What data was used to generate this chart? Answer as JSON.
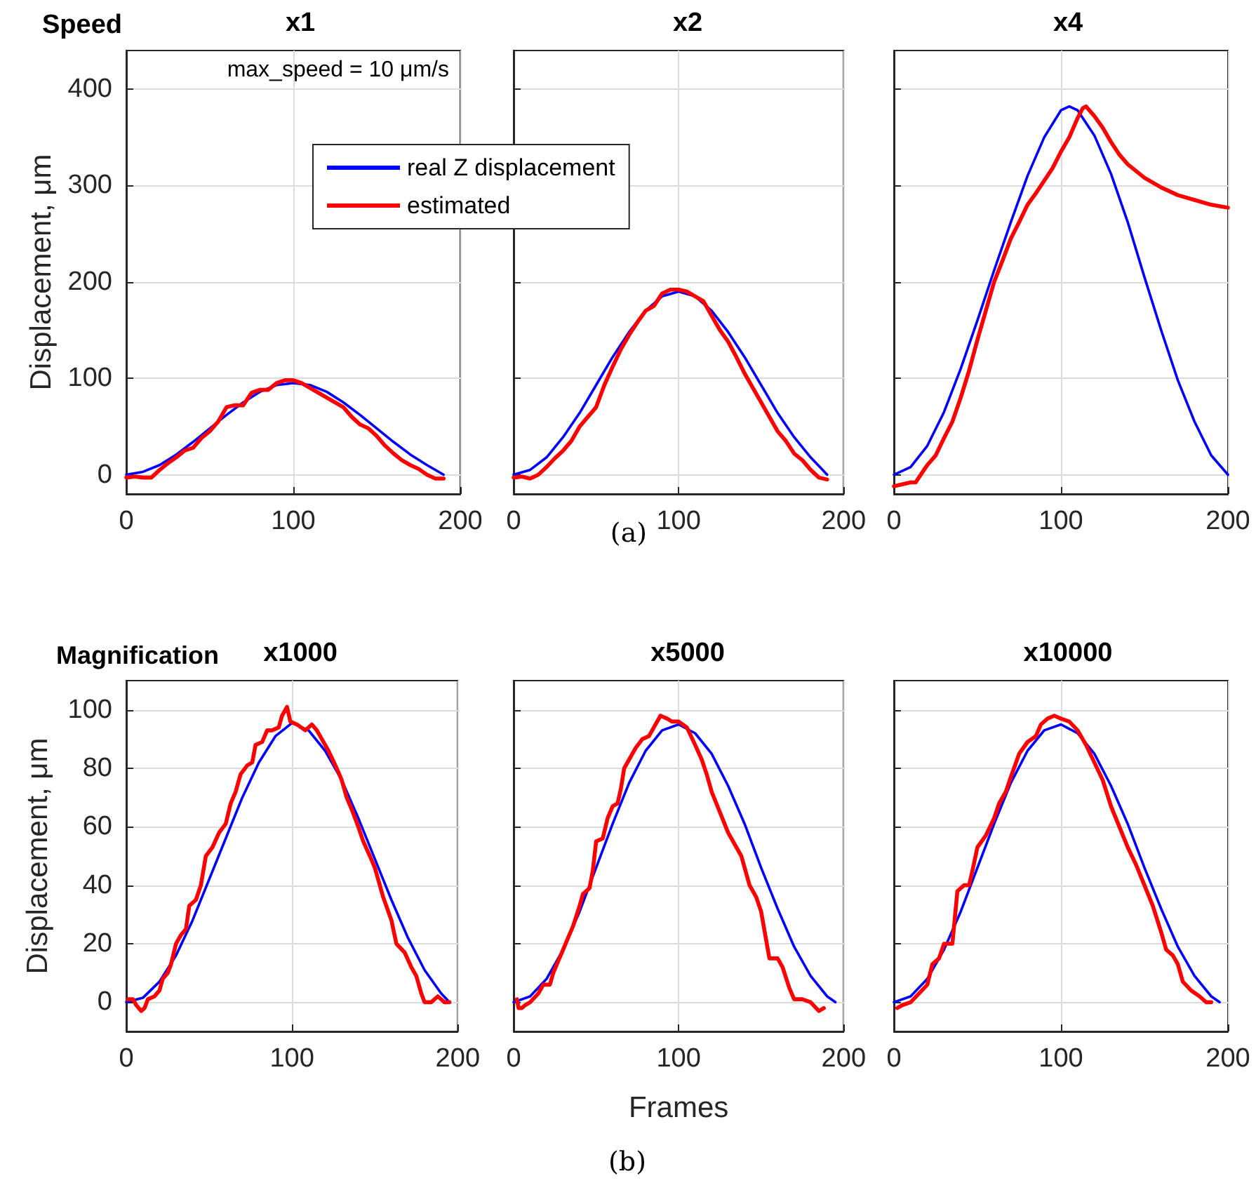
{
  "chart_data": [
    {
      "type": "line",
      "title": "x1",
      "ylabel": "Displacement, μm",
      "annotations": [
        "Speed",
        "max_speed = 10 μm/s"
      ],
      "legend": "top right",
      "grid": true,
      "xlim": [
        0,
        200
      ],
      "xticks": [
        0,
        100,
        200
      ],
      "ylim": [
        -20,
        440
      ],
      "yticks": [
        0,
        100,
        200,
        300,
        400
      ],
      "series": [
        {
          "name": "real Z displacement",
          "color": "#0000ff",
          "x": [
            0,
            10,
            20,
            30,
            40,
            50,
            60,
            70,
            80,
            90,
            100,
            110,
            120,
            130,
            140,
            150,
            160,
            170,
            180,
            190
          ],
          "values": [
            0,
            3,
            10,
            21,
            34,
            48,
            62,
            75,
            86,
            93,
            95,
            93,
            86,
            75,
            62,
            48,
            34,
            21,
            10,
            0
          ]
        },
        {
          "name": "estimated",
          "color": "#ff0000",
          "x": [
            0,
            5,
            10,
            15,
            20,
            25,
            30,
            35,
            40,
            45,
            50,
            55,
            60,
            65,
            70,
            75,
            80,
            85,
            90,
            95,
            100,
            105,
            110,
            115,
            120,
            125,
            130,
            135,
            140,
            145,
            150,
            155,
            160,
            165,
            170,
            175,
            180,
            185,
            190
          ],
          "values": [
            -3,
            -2,
            -3,
            -3,
            5,
            12,
            18,
            25,
            28,
            38,
            45,
            55,
            70,
            72,
            72,
            85,
            88,
            88,
            95,
            98,
            98,
            95,
            90,
            85,
            80,
            75,
            70,
            60,
            52,
            48,
            40,
            30,
            22,
            15,
            10,
            6,
            0,
            -4,
            -4
          ]
        }
      ]
    },
    {
      "type": "line",
      "title": "x2",
      "annotations": [
        "(a)"
      ],
      "grid": true,
      "tick_labels": "x",
      "xlim": [
        0,
        200
      ],
      "xticks": [
        0,
        100,
        200
      ],
      "ylim": [
        -20,
        440
      ],
      "yticks": [
        0,
        100,
        200,
        300,
        400
      ],
      "series": [
        {
          "color": "#0000ff",
          "x": [
            0,
            10,
            20,
            30,
            40,
            50,
            60,
            70,
            80,
            90,
            100,
            110,
            120,
            130,
            140,
            150,
            160,
            170,
            180,
            190
          ],
          "values": [
            0,
            5,
            18,
            39,
            64,
            93,
            122,
            148,
            170,
            185,
            190,
            185,
            170,
            148,
            122,
            93,
            64,
            39,
            18,
            0
          ]
        },
        {
          "color": "#ff0000",
          "x": [
            0,
            5,
            10,
            15,
            20,
            25,
            30,
            35,
            40,
            45,
            50,
            55,
            60,
            65,
            70,
            75,
            80,
            85,
            90,
            95,
            100,
            105,
            110,
            115,
            120,
            125,
            130,
            135,
            140,
            145,
            150,
            155,
            160,
            165,
            170,
            175,
            180,
            185,
            190
          ],
          "values": [
            -3,
            -2,
            -4,
            0,
            8,
            17,
            25,
            35,
            50,
            60,
            70,
            93,
            112,
            130,
            145,
            158,
            170,
            175,
            188,
            192,
            192,
            190,
            185,
            180,
            165,
            150,
            138,
            122,
            105,
            90,
            75,
            60,
            45,
            35,
            22,
            15,
            5,
            -3,
            -5
          ]
        }
      ]
    },
    {
      "type": "line",
      "title": "x4",
      "grid": true,
      "tick_labels": "x",
      "xlim": [
        0,
        200
      ],
      "xticks": [
        0,
        100,
        200
      ],
      "ylim": [
        -20,
        440
      ],
      "yticks": [
        0,
        100,
        200,
        300,
        400
      ],
      "series": [
        {
          "color": "#0000ff",
          "x": [
            0,
            10,
            20,
            30,
            40,
            50,
            60,
            70,
            80,
            90,
            100,
            105,
            110,
            120,
            130,
            140,
            150,
            160,
            170,
            180,
            190,
            200
          ],
          "values": [
            0,
            8,
            30,
            65,
            110,
            160,
            212,
            262,
            310,
            350,
            378,
            382,
            378,
            352,
            312,
            262,
            205,
            150,
            98,
            55,
            20,
            0
          ]
        },
        {
          "color": "#ff0000",
          "x": [
            0,
            10,
            13,
            18,
            20,
            25,
            30,
            35,
            40,
            45,
            50,
            55,
            60,
            65,
            70,
            75,
            80,
            85,
            90,
            95,
            100,
            105,
            110,
            113,
            115,
            120,
            125,
            130,
            135,
            140,
            150,
            160,
            170,
            180,
            190,
            200
          ],
          "values": [
            -12,
            -8,
            -8,
            5,
            10,
            20,
            38,
            55,
            80,
            108,
            140,
            170,
            200,
            222,
            245,
            262,
            280,
            292,
            305,
            318,
            335,
            350,
            370,
            380,
            382,
            372,
            360,
            345,
            332,
            322,
            308,
            298,
            290,
            285,
            280,
            277
          ]
        }
      ]
    },
    {
      "type": "line",
      "title": "x1000",
      "ylabel": "Displacement, μm",
      "annotations": [
        "Magnification"
      ],
      "grid": true,
      "xlim": [
        0,
        200
      ],
      "xticks": [
        0,
        100,
        200
      ],
      "ylim": [
        -10,
        110
      ],
      "yticks": [
        0,
        20,
        40,
        60,
        80,
        100
      ],
      "series": [
        {
          "color": "#0000ff",
          "x": [
            0,
            10,
            20,
            30,
            40,
            50,
            60,
            70,
            80,
            90,
            100,
            110,
            120,
            130,
            140,
            150,
            160,
            170,
            180,
            190,
            195
          ],
          "values": [
            0,
            1.5,
            7,
            16,
            28,
            42,
            56,
            70,
            82,
            91,
            95.5,
            93,
            86,
            76,
            63,
            49,
            35,
            22,
            11,
            3,
            0
          ]
        },
        {
          "color": "#ff0000",
          "x": [
            1,
            4,
            6,
            9,
            11,
            13,
            17,
            20,
            22,
            25,
            27,
            30,
            33,
            36,
            38,
            42,
            45,
            48,
            52,
            56,
            60,
            63,
            66,
            69,
            73,
            76,
            78,
            82,
            85,
            88,
            92,
            94,
            97,
            99,
            103,
            108,
            112,
            115,
            118,
            122,
            127,
            130,
            133,
            136,
            140,
            143,
            147,
            150,
            155,
            160,
            163,
            168,
            172,
            175,
            178,
            180,
            184,
            188,
            192,
            195
          ],
          "values": [
            1,
            1,
            -1,
            -3,
            -2,
            1,
            2,
            4,
            8,
            10,
            13,
            20,
            23,
            25,
            33,
            35,
            40,
            50,
            53,
            58,
            61,
            68,
            72,
            78,
            81,
            82,
            88,
            89,
            93,
            93,
            94,
            98,
            101,
            96,
            95,
            93,
            95,
            93,
            90,
            86,
            80,
            76,
            70,
            66,
            60,
            55,
            50,
            46,
            36,
            28,
            20,
            17,
            12,
            9,
            3,
            0,
            0,
            2,
            0,
            0
          ]
        }
      ]
    },
    {
      "type": "line",
      "title": "x5000",
      "xlabel": "Frames",
      "annotations": [
        "(b)"
      ],
      "grid": true,
      "tick_labels": "x",
      "xlim": [
        0,
        200
      ],
      "xticks": [
        0,
        100,
        200
      ],
      "ylim": [
        -10,
        110
      ],
      "yticks": [
        0,
        20,
        40,
        60,
        80,
        100
      ],
      "series": [
        {
          "color": "#0000ff",
          "x": [
            0,
            10,
            20,
            30,
            40,
            50,
            60,
            70,
            80,
            90,
            100,
            110,
            120,
            130,
            140,
            150,
            160,
            170,
            180,
            190,
            195
          ],
          "values": [
            0,
            2,
            8,
            18,
            31,
            46,
            61,
            75,
            86,
            93,
            95,
            92,
            85,
            74,
            61,
            46,
            32,
            19,
            9,
            2,
            0
          ]
        },
        {
          "color": "#ff0000",
          "x": [
            2,
            3,
            5,
            7,
            10,
            15,
            18,
            22,
            24,
            27,
            30,
            33,
            36,
            40,
            42,
            46,
            48,
            50,
            54,
            57,
            60,
            63,
            65,
            67,
            70,
            74,
            78,
            82,
            85,
            89,
            93,
            96,
            100,
            105,
            110,
            114,
            117,
            120,
            125,
            130,
            134,
            138,
            143,
            147,
            150,
            155,
            160,
            163,
            167,
            170,
            175,
            180,
            185,
            188
          ],
          "values": [
            1,
            -2,
            -2,
            -1,
            0,
            3,
            6,
            6,
            10,
            14,
            18,
            22,
            26,
            33,
            37,
            39,
            45,
            55,
            56,
            63,
            67,
            68,
            73,
            80,
            83,
            87,
            90,
            91,
            94,
            98,
            97,
            96,
            96,
            94,
            88,
            83,
            78,
            72,
            65,
            58,
            54,
            50,
            40,
            36,
            31,
            15,
            15,
            12,
            5,
            1,
            1,
            0,
            -3,
            -2
          ]
        }
      ]
    },
    {
      "type": "line",
      "title": "x10000",
      "grid": true,
      "tick_labels": "x",
      "xlim": [
        0,
        200
      ],
      "xticks": [
        0,
        100,
        200
      ],
      "ylim": [
        -10,
        110
      ],
      "yticks": [
        0,
        20,
        40,
        60,
        80,
        100
      ],
      "series": [
        {
          "color": "#0000ff",
          "x": [
            0,
            10,
            20,
            30,
            40,
            50,
            60,
            70,
            80,
            90,
            100,
            110,
            120,
            130,
            140,
            150,
            160,
            170,
            180,
            190,
            195
          ],
          "values": [
            0,
            2,
            8,
            18,
            31,
            46,
            61,
            75,
            86,
            93,
            95,
            92,
            85,
            74,
            61,
            46,
            32,
            19,
            9,
            2,
            0
          ]
        },
        {
          "color": "#ff0000",
          "x": [
            2,
            5,
            10,
            15,
            20,
            23,
            27,
            30,
            35,
            38,
            42,
            45,
            47,
            50,
            55,
            60,
            63,
            67,
            70,
            75,
            80,
            85,
            88,
            92,
            96,
            100,
            105,
            110,
            115,
            120,
            125,
            130,
            135,
            140,
            145,
            150,
            155,
            160,
            163,
            167,
            170,
            173,
            178,
            183,
            187,
            190
          ],
          "values": [
            -2,
            -1,
            0,
            3,
            6,
            13,
            15,
            20,
            20,
            38,
            40,
            40,
            45,
            53,
            57,
            63,
            68,
            72,
            77,
            85,
            89,
            91,
            95,
            97,
            98,
            97,
            96,
            93,
            88,
            82,
            76,
            67,
            60,
            53,
            47,
            40,
            33,
            24,
            18,
            16,
            13,
            7,
            4,
            2,
            0,
            0
          ]
        }
      ]
    }
  ]
}
